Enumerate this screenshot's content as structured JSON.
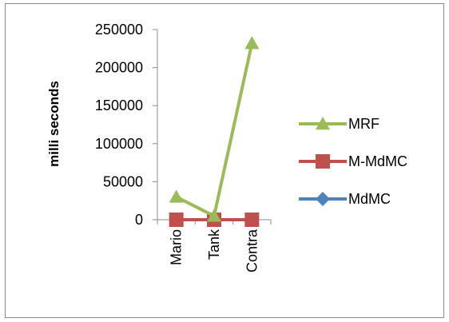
{
  "chart_data": {
    "type": "line",
    "title": "",
    "xlabel": "",
    "ylabel": "milli seconds",
    "categories": [
      "Mario",
      "Tank",
      "Contra"
    ],
    "ylim": [
      0,
      250000
    ],
    "ytick_values": [
      0,
      50000,
      100000,
      150000,
      200000,
      250000
    ],
    "ytick_labels": [
      "0",
      "50000",
      "100000",
      "150000",
      "200000",
      "250000"
    ],
    "grid": false,
    "legend_position": "right",
    "series": [
      {
        "name": "MRF",
        "values": [
          30000,
          5000,
          232000
        ],
        "color": "#9bbb59",
        "marker": "triangle"
      },
      {
        "name": "M-MdMC",
        "values": [
          0,
          0,
          0
        ],
        "color": "#c0504d",
        "marker": "square"
      },
      {
        "name": "MdMC",
        "values": [
          0,
          0,
          0
        ],
        "color": "#4f81bd",
        "marker": "diamond"
      }
    ]
  }
}
